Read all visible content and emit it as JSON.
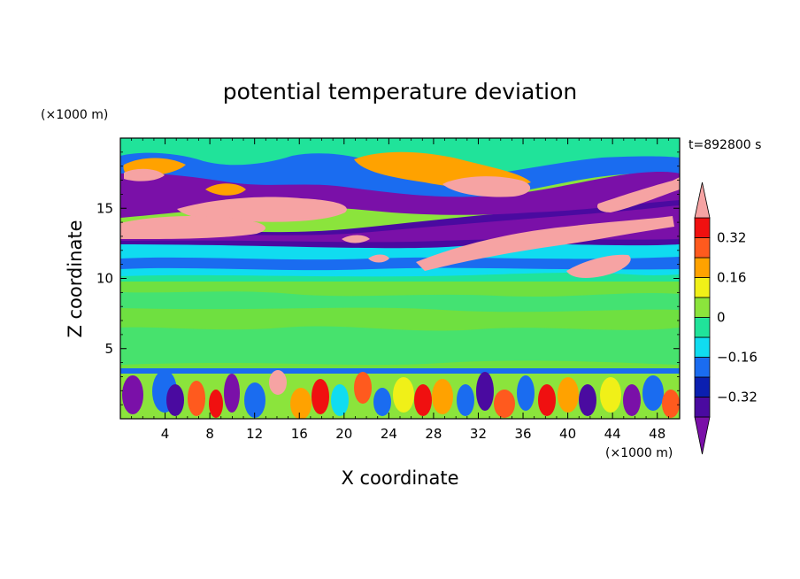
{
  "chart_data": {
    "type": "heatmap",
    "title": "potential temperature deviation",
    "xlabel": "X coordinate",
    "ylabel": "Z coordinate",
    "x_unit": "(×1000 m)",
    "y_unit": "(×1000 m)",
    "time_label": "t=892800 s",
    "xlim": [
      0,
      50
    ],
    "ylim": [
      0,
      20
    ],
    "x_ticks": [
      4,
      8,
      12,
      16,
      20,
      24,
      28,
      32,
      36,
      40,
      44,
      48
    ],
    "y_ticks": [
      5,
      10,
      15
    ],
    "colorbar": {
      "levels": [
        -0.4,
        -0.32,
        -0.24,
        -0.16,
        -0.08,
        0,
        0.08,
        0.16,
        0.24,
        0.32,
        0.4
      ],
      "labeled_ticks": [
        -0.32,
        -0.16,
        0,
        0.16,
        0.32
      ],
      "colors": [
        "#7a10a8",
        "#4a0aa0",
        "#0b1fb0",
        "#1a6cf0",
        "#10dcf0",
        "#20e39a",
        "#8be43c",
        "#f0f018",
        "#ffa200",
        "#ff5a1e",
        "#f01010",
        "#f6a3a3"
      ],
      "extend": "both"
    },
    "layers": [
      {
        "z_range": [
          0,
          3.5
        ],
        "description_value": "mixed",
        "dominant_values": [
          -0.4,
          0.4
        ]
      },
      {
        "z_range": [
          3.5,
          10.5
        ],
        "dominant_values": [
          0,
          0.08
        ]
      },
      {
        "z_range": [
          10.5,
          12.5
        ],
        "dominant_values": [
          -0.16,
          -0.08
        ]
      },
      {
        "z_range": [
          12.5,
          18
        ],
        "dominant_values": [
          -0.4,
          0.4
        ]
      }
    ]
  }
}
